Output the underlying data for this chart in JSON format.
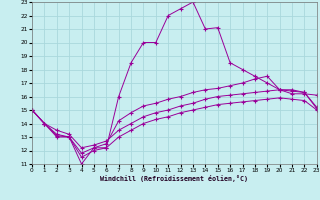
{
  "xlabel": "Windchill (Refroidissement éolien,°C)",
  "bg_color": "#c8eef0",
  "grid_color": "#aad8dc",
  "line_color": "#990099",
  "xlim": [
    0,
    23
  ],
  "ylim": [
    11,
    23
  ],
  "xticks": [
    0,
    1,
    2,
    3,
    4,
    5,
    6,
    7,
    8,
    9,
    10,
    11,
    12,
    13,
    14,
    15,
    16,
    17,
    18,
    19,
    20,
    21,
    22,
    23
  ],
  "yticks": [
    11,
    12,
    13,
    14,
    15,
    16,
    17,
    18,
    19,
    20,
    21,
    22,
    23
  ],
  "line1_x": [
    0,
    1,
    2,
    3,
    4,
    5,
    6,
    7,
    8,
    9,
    10,
    11,
    12,
    13,
    14,
    15,
    16,
    17,
    18,
    19,
    20,
    21,
    22,
    23
  ],
  "line1_y": [
    15,
    14,
    13,
    13,
    11,
    12.2,
    12.2,
    16,
    18.5,
    20,
    20,
    22,
    22.5,
    23,
    21,
    21.1,
    18.5,
    18,
    17.5,
    17,
    16.5,
    16.2,
    16.2,
    16.1
  ],
  "line2_x": [
    0,
    1,
    2,
    3,
    4,
    5,
    6,
    7,
    8,
    9,
    10,
    11,
    12,
    13,
    14,
    15,
    16,
    17,
    18,
    19,
    20,
    21,
    22,
    23
  ],
  "line2_y": [
    15,
    14.0,
    13.2,
    13.0,
    11.8,
    12.2,
    12.5,
    14.2,
    14.8,
    15.3,
    15.5,
    15.8,
    16.0,
    16.3,
    16.5,
    16.6,
    16.8,
    17.0,
    17.3,
    17.5,
    16.5,
    16.5,
    16.3,
    15.2
  ],
  "line3_x": [
    0,
    1,
    2,
    3,
    4,
    5,
    6,
    7,
    8,
    9,
    10,
    11,
    12,
    13,
    14,
    15,
    16,
    17,
    18,
    19,
    20,
    21,
    22,
    23
  ],
  "line3_y": [
    15,
    14.0,
    13.5,
    13.2,
    12.2,
    12.4,
    12.7,
    13.5,
    14.0,
    14.5,
    14.8,
    15.0,
    15.3,
    15.5,
    15.8,
    16.0,
    16.1,
    16.2,
    16.3,
    16.4,
    16.5,
    16.4,
    16.3,
    15.1
  ],
  "line4_x": [
    0,
    1,
    2,
    3,
    4,
    5,
    6,
    7,
    8,
    9,
    10,
    11,
    12,
    13,
    14,
    15,
    16,
    17,
    18,
    19,
    20,
    21,
    22,
    23
  ],
  "line4_y": [
    15,
    14.0,
    13.1,
    13.0,
    11.5,
    12.0,
    12.2,
    13.0,
    13.5,
    14.0,
    14.3,
    14.5,
    14.8,
    15.0,
    15.2,
    15.4,
    15.5,
    15.6,
    15.7,
    15.8,
    15.9,
    15.8,
    15.7,
    15.0
  ]
}
